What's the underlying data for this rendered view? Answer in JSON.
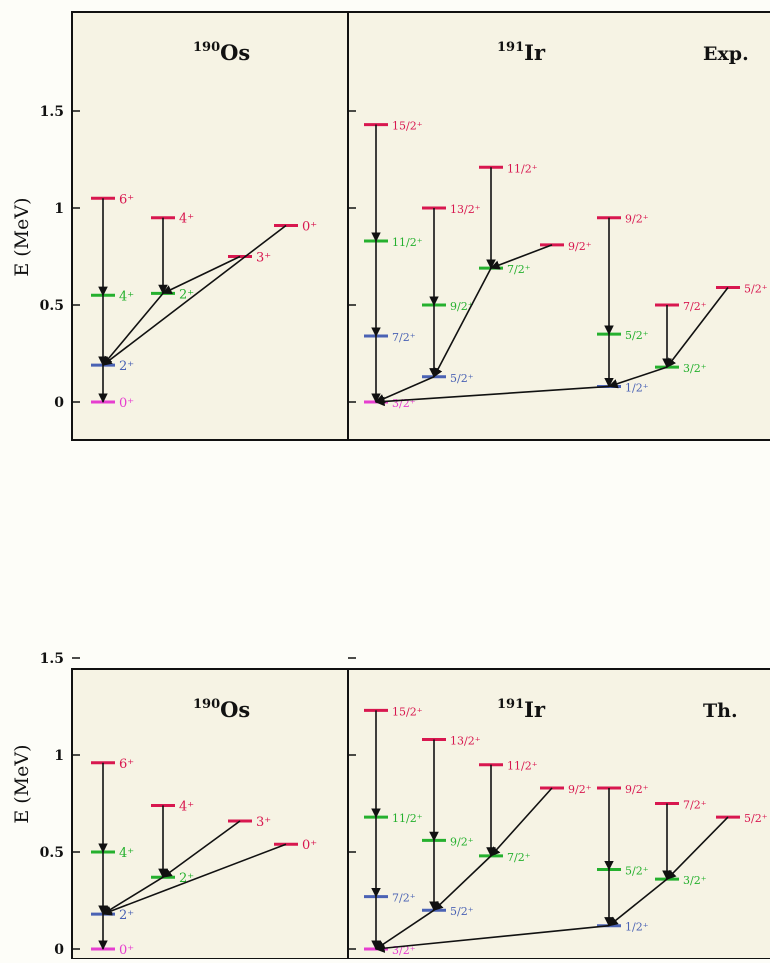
{
  "y_axis_label": "E (MeV)",
  "y_ticks": [
    "0",
    "0.5",
    "1",
    "1.5"
  ],
  "colors": {
    "red": "#d8174f",
    "green": "#25b02e",
    "blue": "#4a62b4",
    "magenta": "#e63ecf",
    "arrow": "#111111"
  },
  "panels": [
    {
      "id": "exp",
      "left_nucleus": {
        "mass": "190",
        "symbol": "Os"
      },
      "right_nucleus": {
        "mass": "191",
        "symbol": "Ir"
      },
      "tag": "Exp.",
      "os_levels": [
        {
          "key": "g0",
          "spin": "0⁺",
          "E": 0.0,
          "col": "c1",
          "color": "magenta"
        },
        {
          "key": "g2",
          "spin": "2⁺",
          "E": 0.19,
          "col": "c1",
          "color": "blue"
        },
        {
          "key": "g4",
          "spin": "4⁺",
          "E": 0.55,
          "col": "c1",
          "color": "green"
        },
        {
          "key": "g6",
          "spin": "6⁺",
          "E": 1.05,
          "col": "c1",
          "color": "red"
        },
        {
          "key": "gam2",
          "spin": "2⁺",
          "E": 0.56,
          "col": "c2",
          "color": "green"
        },
        {
          "key": "gam4",
          "spin": "4⁺",
          "E": 0.95,
          "col": "c2",
          "color": "red"
        },
        {
          "key": "gam3",
          "spin": "3⁺",
          "E": 0.75,
          "col": "c3",
          "color": "red"
        },
        {
          "key": "exc0",
          "spin": "0⁺",
          "E": 0.91,
          "col": "c4",
          "color": "red"
        }
      ],
      "ir_levels": [
        {
          "key": "a3",
          "spin": "3/2⁺",
          "E": 0.0,
          "col": "c1",
          "color": "magenta"
        },
        {
          "key": "a7",
          "spin": "7/2⁺",
          "E": 0.34,
          "col": "c1",
          "color": "blue"
        },
        {
          "key": "a11",
          "spin": "11/2⁺",
          "E": 0.83,
          "col": "c1",
          "color": "green"
        },
        {
          "key": "a15",
          "spin": "15/2⁺",
          "E": 1.43,
          "col": "c1",
          "color": "red"
        },
        {
          "key": "b5",
          "spin": "5/2⁺",
          "E": 0.13,
          "col": "c2",
          "color": "blue"
        },
        {
          "key": "b9",
          "spin": "9/2⁺",
          "E": 0.5,
          "col": "c2",
          "color": "green"
        },
        {
          "key": "b13",
          "spin": "13/2⁺",
          "E": 1.0,
          "col": "c2",
          "color": "red"
        },
        {
          "key": "c7",
          "spin": "7/2⁺",
          "E": 0.69,
          "col": "c3",
          "color": "green"
        },
        {
          "key": "c11",
          "spin": "11/2⁺",
          "E": 1.21,
          "col": "c3",
          "color": "red"
        },
        {
          "key": "c9",
          "spin": "9/2⁺",
          "E": 0.81,
          "col": "c3b",
          "color": "red"
        },
        {
          "key": "d1",
          "spin": "1/2⁺",
          "E": 0.08,
          "col": "c4",
          "color": "blue"
        },
        {
          "key": "d5",
          "spin": "5/2⁺",
          "E": 0.35,
          "col": "c4",
          "color": "green"
        },
        {
          "key": "d9",
          "spin": "9/2⁺",
          "E": 0.95,
          "col": "c4",
          "color": "red"
        },
        {
          "key": "e3",
          "spin": "3/2⁺",
          "E": 0.18,
          "col": "c5",
          "color": "green"
        },
        {
          "key": "e7",
          "spin": "7/2⁺",
          "E": 0.5,
          "col": "c5",
          "color": "red"
        },
        {
          "key": "f5",
          "spin": "5/2⁺",
          "E": 0.59,
          "col": "c6",
          "color": "red"
        }
      ]
    },
    {
      "id": "th",
      "left_nucleus": {
        "mass": "190",
        "symbol": "Os"
      },
      "right_nucleus": {
        "mass": "191",
        "symbol": "Ir"
      },
      "tag": "Th.",
      "os_levels": [
        {
          "key": "g0",
          "spin": "0⁺",
          "E": 0.0,
          "col": "c1",
          "color": "magenta"
        },
        {
          "key": "g2",
          "spin": "2⁺",
          "E": 0.18,
          "col": "c1",
          "color": "blue"
        },
        {
          "key": "g4",
          "spin": "4⁺",
          "E": 0.5,
          "col": "c1",
          "color": "green"
        },
        {
          "key": "g6",
          "spin": "6⁺",
          "E": 0.96,
          "col": "c1",
          "color": "red"
        },
        {
          "key": "gam2",
          "spin": "2⁺",
          "E": 0.37,
          "col": "c2",
          "color": "green"
        },
        {
          "key": "gam4",
          "spin": "4⁺",
          "E": 0.74,
          "col": "c2",
          "color": "red"
        },
        {
          "key": "gam3",
          "spin": "3⁺",
          "E": 0.66,
          "col": "c3",
          "color": "red"
        },
        {
          "key": "exc0",
          "spin": "0⁺",
          "E": 0.54,
          "col": "c4",
          "color": "red"
        }
      ],
      "ir_levels": [
        {
          "key": "a3",
          "spin": "3/2⁺",
          "E": 0.0,
          "col": "c1",
          "color": "magenta"
        },
        {
          "key": "a7",
          "spin": "7/2⁺",
          "E": 0.27,
          "col": "c1",
          "color": "blue"
        },
        {
          "key": "a11",
          "spin": "11/2⁺",
          "E": 0.68,
          "col": "c1",
          "color": "green"
        },
        {
          "key": "a15",
          "spin": "15/2⁺",
          "E": 1.23,
          "col": "c1",
          "color": "red"
        },
        {
          "key": "b5",
          "spin": "5/2⁺",
          "E": 0.2,
          "col": "c2",
          "color": "blue"
        },
        {
          "key": "b9",
          "spin": "9/2⁺",
          "E": 0.56,
          "col": "c2",
          "color": "green"
        },
        {
          "key": "b13",
          "spin": "13/2⁺",
          "E": 1.08,
          "col": "c2",
          "color": "red"
        },
        {
          "key": "c7",
          "spin": "7/2⁺",
          "E": 0.48,
          "col": "c3",
          "color": "green"
        },
        {
          "key": "c11",
          "spin": "11/2⁺",
          "E": 0.95,
          "col": "c3",
          "color": "red"
        },
        {
          "key": "c9",
          "spin": "9/2⁺",
          "E": 0.83,
          "col": "c3b",
          "color": "red"
        },
        {
          "key": "d1",
          "spin": "1/2⁺",
          "E": 0.12,
          "col": "c4",
          "color": "blue"
        },
        {
          "key": "d5",
          "spin": "5/2⁺",
          "E": 0.41,
          "col": "c4",
          "color": "green"
        },
        {
          "key": "d9",
          "spin": "9/2⁺",
          "E": 0.83,
          "col": "c4",
          "color": "red"
        },
        {
          "key": "e3",
          "spin": "3/2⁺",
          "E": 0.36,
          "col": "c5",
          "color": "green"
        },
        {
          "key": "e7",
          "spin": "7/2⁺",
          "E": 0.75,
          "col": "c5",
          "color": "red"
        },
        {
          "key": "f5",
          "spin": "5/2⁺",
          "E": 0.68,
          "col": "c6",
          "color": "red"
        }
      ]
    }
  ],
  "os_transitions": [
    [
      "g6",
      "g4"
    ],
    [
      "g4",
      "g2"
    ],
    [
      "g2",
      "g0"
    ],
    [
      "gam4",
      "gam2"
    ],
    [
      "gam2",
      "g2"
    ],
    [
      "gam3",
      "gam2"
    ],
    [
      "exc0",
      "g2"
    ]
  ],
  "ir_transitions": [
    [
      "a15",
      "a11"
    ],
    [
      "a11",
      "a7"
    ],
    [
      "a7",
      "a3"
    ],
    [
      "b13",
      "b9"
    ],
    [
      "b9",
      "b5"
    ],
    [
      "b5",
      "a3"
    ],
    [
      "c11",
      "c7"
    ],
    [
      "c7",
      "b5"
    ],
    [
      "c9",
      "c7"
    ],
    [
      "d9",
      "d5"
    ],
    [
      "d5",
      "d1"
    ],
    [
      "d1",
      "a3"
    ],
    [
      "e7",
      "e3"
    ],
    [
      "e3",
      "d1"
    ],
    [
      "f5",
      "e3"
    ]
  ]
}
